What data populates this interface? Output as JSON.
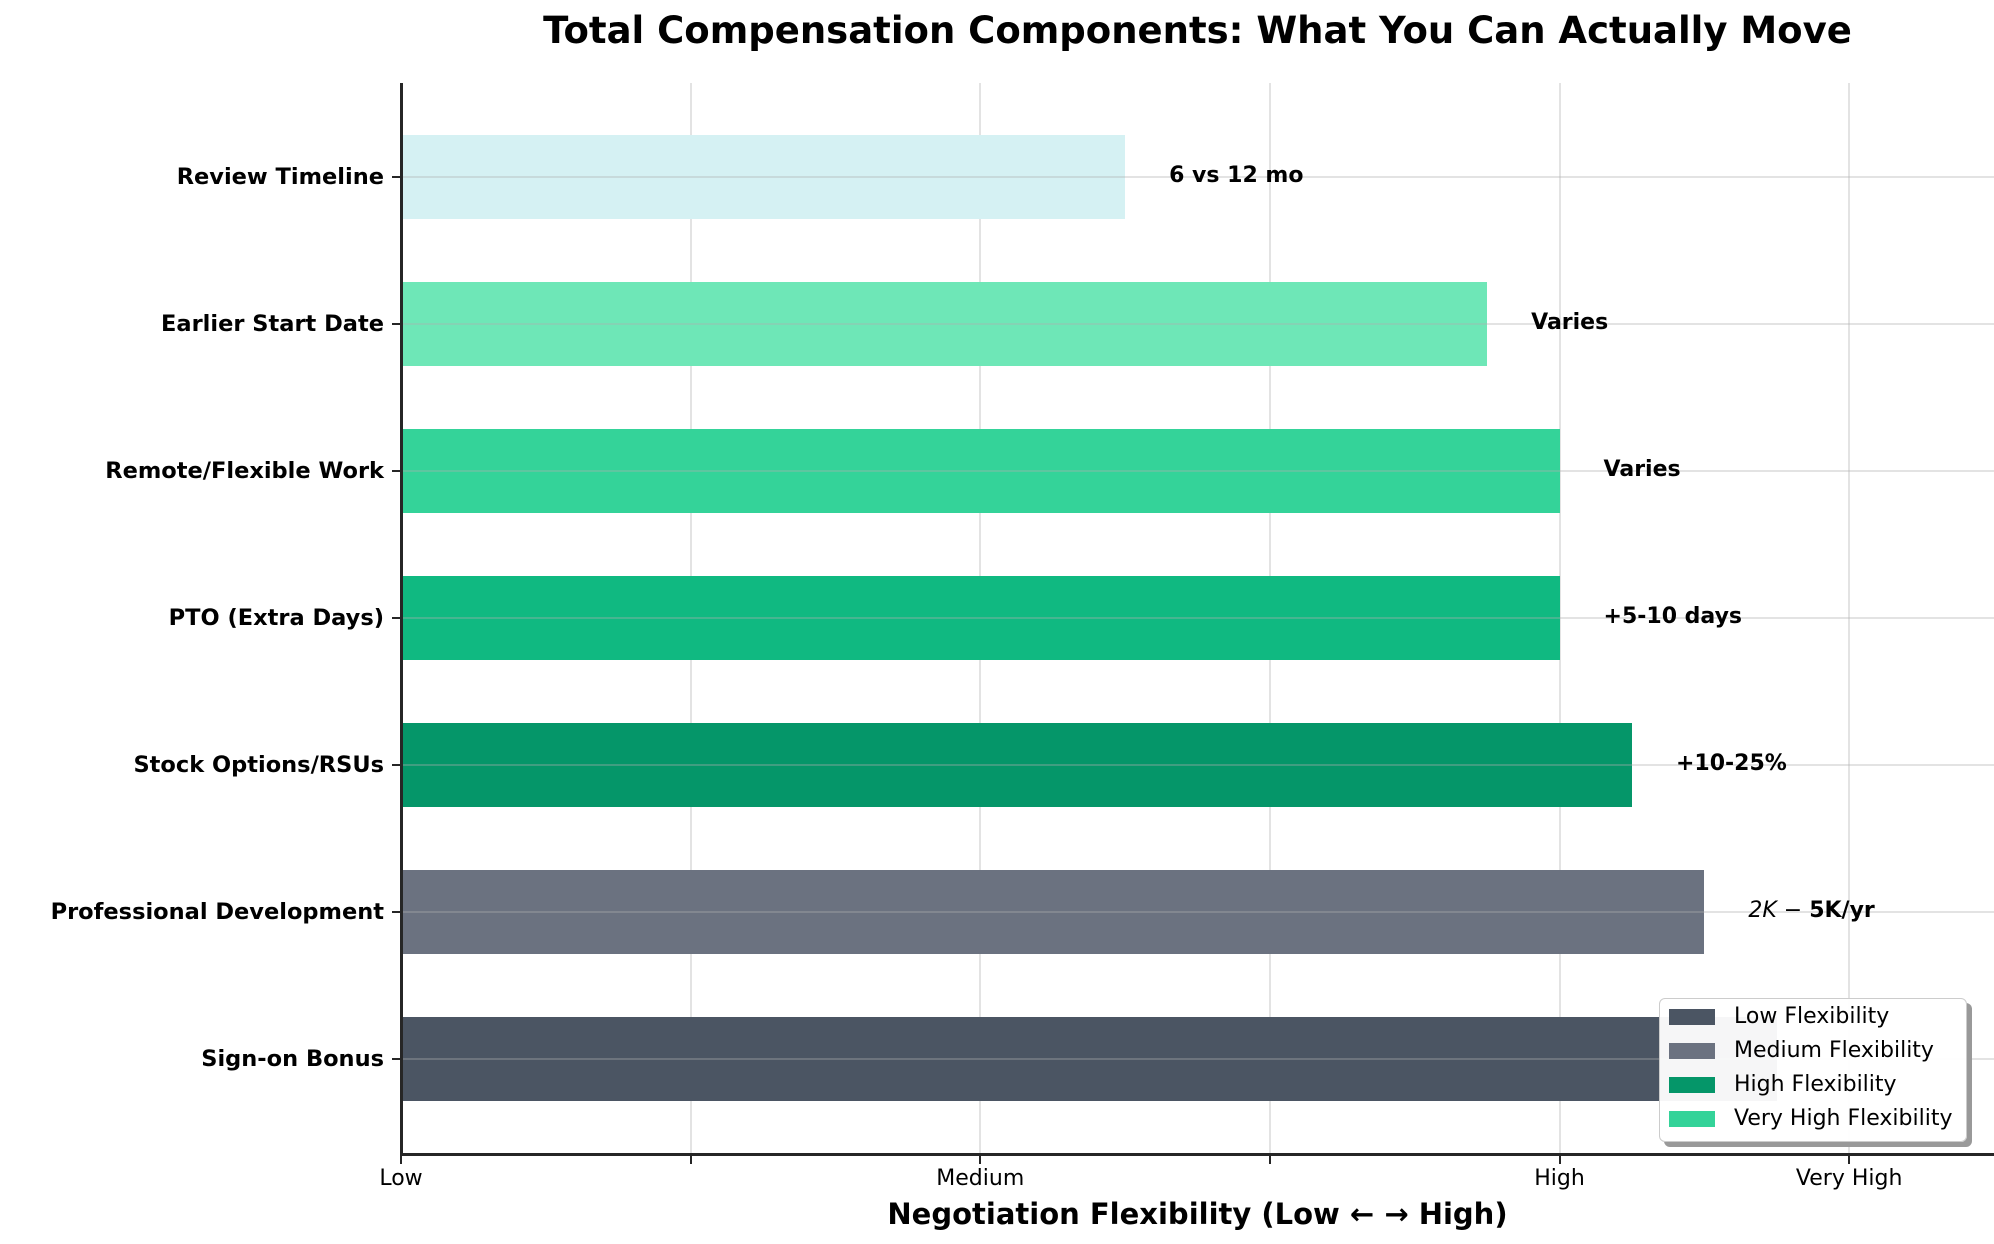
{
  "chart": {
    "title": "Total Compensation Components: What You Can Actually Move",
    "xlabel": "Negotiation Flexibility (Low ← → High)"
  },
  "chart_data": {
    "type": "bar",
    "orientation": "horizontal",
    "title": "Total Compensation Components: What You Can Actually Move",
    "xlabel": "Negotiation Flexibility (Low ← → High)",
    "ylabel": "",
    "xlim": [
      0,
      5.5
    ],
    "grid": true,
    "xticks": [
      0,
      1,
      2,
      3,
      4,
      5
    ],
    "xtick_labels": [
      "Low",
      "",
      "Medium",
      "",
      "High",
      "Very High"
    ],
    "categories": [
      "Sign-on Bonus",
      "Professional Development",
      "Stock Options/RSUs",
      "PTO (Extra Days)",
      "Remote/Flexible Work",
      "Earlier Start Date",
      "Review Timeline"
    ],
    "values": [
      4.75,
      4.5,
      4.25,
      4.0,
      4.0,
      3.75,
      2.5
    ],
    "value_labels": [
      "",
      "$2K-$5K/yr",
      "+10-25%",
      "+5-10 days",
      "Varies",
      "Varies",
      "6 vs 12 mo"
    ],
    "colors": [
      "#4B5563",
      "#6B7280",
      "#059669",
      "#10B981",
      "#34D399",
      "#6EE7B7",
      "#D5F1F3"
    ],
    "legend": {
      "position": "lower right",
      "entries": [
        {
          "label": "Low Flexibility",
          "color": "#4B5563"
        },
        {
          "label": "Medium Flexibility",
          "color": "#6B7280"
        },
        {
          "label": "High Flexibility",
          "color": "#059669"
        },
        {
          "label": "Very High Flexibility",
          "color": "#34D399"
        }
      ]
    },
    "notes": "Sign-on Bonus bar end and its value label are hidden behind the legend; value estimated."
  },
  "bars": [
    {
      "category": "Review Timeline",
      "value": 2.5,
      "color": "#D5F1F3",
      "label_prefix": "",
      "label": "6 vs 12 mo"
    },
    {
      "category": "Earlier Start Date",
      "value": 3.75,
      "color": "#6EE7B7",
      "label_prefix": "",
      "label": "Varies"
    },
    {
      "category": "Remote/Flexible Work",
      "value": 4.0,
      "color": "#34D399",
      "label_prefix": "",
      "label": "Varies"
    },
    {
      "category": "PTO (Extra Days)",
      "value": 4.0,
      "color": "#10B981",
      "label_prefix": "",
      "label": "+5-10 days"
    },
    {
      "category": "Stock Options/RSUs",
      "value": 4.25,
      "color": "#059669",
      "label_prefix": "",
      "label": "+10-25%"
    },
    {
      "category": "Professional Development",
      "value": 4.5,
      "color": "#6B7280",
      "label_prefix": "2K − ",
      "label": "5K/yr"
    },
    {
      "category": "Sign-on Bonus",
      "value": 4.75,
      "color": "#4B5563",
      "label_prefix": "",
      "label": ""
    }
  ],
  "xaxis": {
    "ticks": [
      {
        "value": 0,
        "label": "Low"
      },
      {
        "value": 1,
        "label": ""
      },
      {
        "value": 2,
        "label": "Medium"
      },
      {
        "value": 3,
        "label": ""
      },
      {
        "value": 4,
        "label": "High"
      },
      {
        "value": 5,
        "label": "Very High"
      }
    ]
  },
  "legend": {
    "entries": [
      {
        "label": "Low Flexibility",
        "color": "#4B5563"
      },
      {
        "label": "Medium Flexibility",
        "color": "#6B7280"
      },
      {
        "label": "High Flexibility",
        "color": "#059669"
      },
      {
        "label": "Very High Flexibility",
        "color": "#34D399"
      }
    ]
  }
}
